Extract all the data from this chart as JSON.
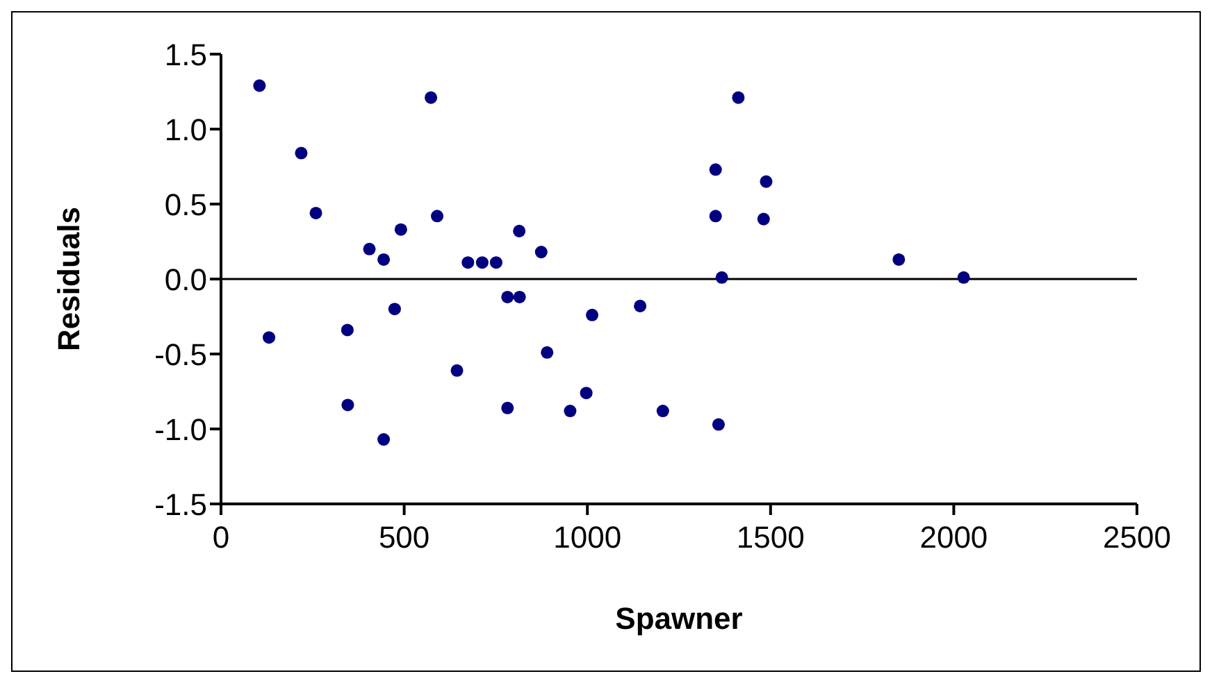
{
  "chart_data": {
    "type": "scatter",
    "xlabel": "Spawner",
    "ylabel": "Residuals",
    "x": [
      105,
      219,
      259,
      131,
      345,
      346,
      405,
      444,
      444,
      491,
      474,
      573,
      590,
      644,
      674,
      713,
      751,
      782,
      815,
      814,
      874,
      890,
      782,
      953,
      997,
      1013,
      1144,
      1206,
      1350,
      1350,
      1412,
      1488,
      1481,
      1367,
      1358,
      1850,
      2027
    ],
    "series": [
      {
        "color": "#000080",
        "values": [
          1.29,
          0.84,
          0.44,
          -0.39,
          -0.34,
          -0.84,
          0.2,
          0.13,
          -1.07,
          0.33,
          -0.2,
          1.21,
          0.42,
          -0.61,
          0.11,
          0.11,
          0.11,
          -0.12,
          -0.12,
          0.32,
          0.18,
          -0.49,
          -0.86,
          -0.88,
          -0.76,
          -0.24,
          -0.18,
          -0.88,
          0.73,
          0.42,
          1.21,
          0.65,
          0.4,
          0.01,
          -0.97,
          0.13,
          0.01
        ]
      }
    ],
    "xlim": [
      0,
      2500
    ],
    "xticks": [
      0,
      500,
      1000,
      1500,
      2000,
      2500
    ],
    "ylim": [
      -1.5,
      1.5
    ],
    "yticks": [
      {
        "value": -1.5,
        "label": "-1.5"
      },
      {
        "value": -1,
        "label": "-1.0"
      },
      {
        "value": -0.5,
        "label": "-0.5"
      },
      {
        "value": 0,
        "label": "0.0"
      },
      {
        "value": 0.5,
        "label": "0.5"
      },
      {
        "value": 1,
        "label": "1.0"
      },
      {
        "value": 1.5,
        "label": "1.5"
      }
    ],
    "ref_lines": [
      {
        "axis": "y",
        "value": 0,
        "color": "#000000"
      }
    ],
    "grid": false,
    "marker": "circle"
  }
}
